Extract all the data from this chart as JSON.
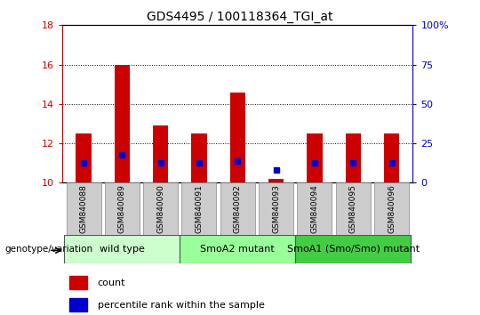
{
  "title": "GDS4495 / 100118364_TGI_at",
  "samples": [
    "GSM840088",
    "GSM840089",
    "GSM840090",
    "GSM840091",
    "GSM840092",
    "GSM840093",
    "GSM840094",
    "GSM840095",
    "GSM840096"
  ],
  "count_values": [
    12.5,
    16.0,
    12.9,
    12.5,
    14.6,
    10.2,
    12.5,
    12.5,
    12.5
  ],
  "count_base": 10.0,
  "percentile_values": [
    11.0,
    11.4,
    11.0,
    11.0,
    11.1,
    10.65,
    11.0,
    11.0,
    11.0
  ],
  "ylim_left": [
    10,
    18
  ],
  "ylim_right": [
    0,
    100
  ],
  "yticks_left": [
    10,
    12,
    14,
    16,
    18
  ],
  "yticks_right": [
    0,
    25,
    50,
    75,
    100
  ],
  "ytick_labels_right": [
    "0",
    "25",
    "50",
    "75",
    "100%"
  ],
  "bar_color": "#cc0000",
  "percentile_color": "#0000cc",
  "bg_color": "#ffffff",
  "sample_bg_color": "#cccccc",
  "groups": [
    {
      "label": "wild type",
      "color": "#ccffcc",
      "start": 0,
      "end": 2
    },
    {
      "label": "SmoA2 mutant",
      "color": "#99ff99",
      "start": 3,
      "end": 5
    },
    {
      "label": "SmoA1 (Smo/Smo) mutant",
      "color": "#44cc44",
      "start": 6,
      "end": 8
    }
  ],
  "left_axis_color": "#cc0000",
  "right_axis_color": "#0000cc",
  "legend_count_label": "count",
  "legend_percentile_label": "percentile rank within the sample",
  "genotype_label": "genotype/variation",
  "bar_width": 0.4,
  "title_fontsize": 10,
  "tick_fontsize": 8,
  "sample_fontsize": 6.5,
  "group_fontsize": 8,
  "legend_fontsize": 8
}
